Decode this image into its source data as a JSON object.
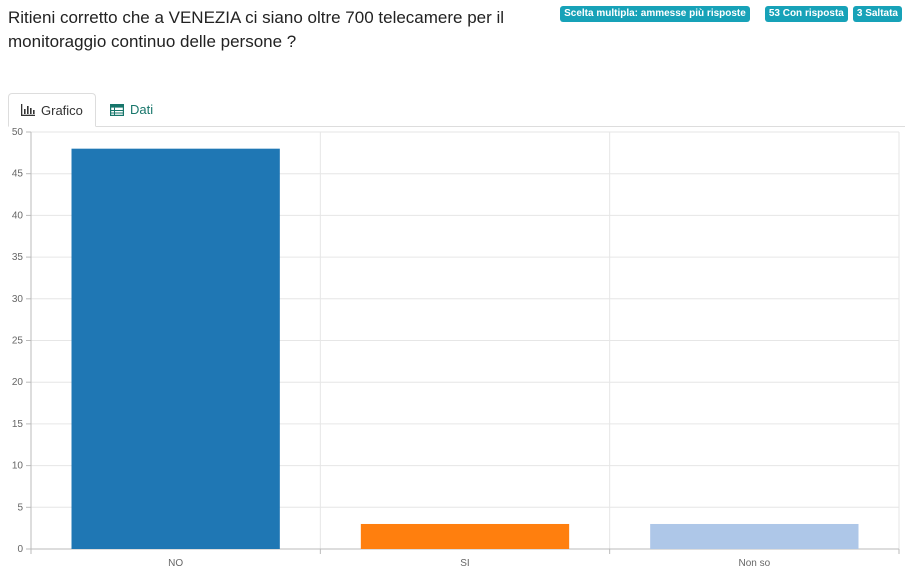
{
  "question": {
    "title": "Ritieni corretto che a VENEZIA ci siano oltre 700 telecamere per il monitoraggio continuo delle persone ?"
  },
  "badges": {
    "type": "Scelta multipla: ammesse più risposte",
    "answered": "53 Con risposta",
    "skipped": "3 Saltata"
  },
  "tabs": {
    "chart_label": "Grafico",
    "data_label": "Dati"
  },
  "chart_data": {
    "type": "bar",
    "categories": [
      "NO",
      "SI",
      "Non so"
    ],
    "values": [
      48,
      3,
      3
    ],
    "colors": [
      "#1f77b4",
      "#ff7f0e",
      "#aec7e8"
    ],
    "ylim": [
      0,
      50
    ],
    "yticks": [
      0,
      5,
      10,
      15,
      20,
      25,
      30,
      35,
      40,
      45,
      50
    ],
    "grid": true
  }
}
